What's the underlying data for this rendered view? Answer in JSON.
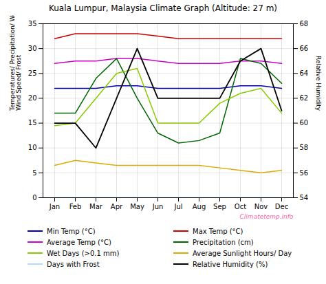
{
  "chart_data": {
    "type": "line",
    "title": "Kuala Lumpur, Malaysia Climate Graph (Altitude: 27 m)",
    "categories": [
      "Jan",
      "Feb",
      "Mar",
      "Apr",
      "May",
      "Jun",
      "Jul",
      "Aug",
      "Sep",
      "Oct",
      "Nov",
      "Dec"
    ],
    "series": [
      {
        "name": "Min Temp (°C)",
        "color": "#0000bb",
        "values": [
          22,
          22,
          22,
          22.5,
          22.5,
          22,
          22,
          22,
          22,
          22.5,
          22.5,
          22
        ]
      },
      {
        "name": "Max Temp (°C)",
        "color": "#cc0000",
        "values": [
          32,
          33,
          33,
          33,
          33,
          32.5,
          32,
          32,
          32,
          32,
          32,
          32
        ]
      },
      {
        "name": "Average Temp (°C)",
        "color": "#cc00cc",
        "values": [
          27,
          27.5,
          27.5,
          28,
          28,
          27.5,
          27,
          27,
          27,
          27.5,
          27.5,
          27
        ]
      },
      {
        "name": "Precipitation (cm)",
        "color": "#006600",
        "values": [
          17,
          17,
          24,
          28,
          20,
          13,
          11,
          11.5,
          13,
          28,
          27,
          23
        ]
      },
      {
        "name": "Wet Days (>0.1 mm)",
        "color": "#88cc00",
        "values": [
          14.5,
          15,
          20,
          25,
          26,
          15,
          15,
          15,
          19,
          21,
          22,
          17
        ]
      },
      {
        "name": "Average Sunlight Hours/ Day",
        "color": "#ddaa00",
        "values": [
          6.5,
          7.5,
          7,
          6.5,
          6.5,
          6.5,
          6.5,
          6.5,
          6,
          5.5,
          5,
          5.5
        ]
      },
      {
        "name": "Days with Frost",
        "color": "#aaddff",
        "values": [
          0,
          0,
          0,
          0,
          0,
          0,
          0,
          0,
          0,
          0,
          0,
          0
        ]
      },
      {
        "name": "Relative Humidity (%)",
        "color": "#000000",
        "values": [
          60,
          60,
          58,
          62,
          66,
          62,
          62,
          62,
          62,
          65,
          66,
          61
        ],
        "axis": "y2"
      }
    ],
    "ylim": [
      0,
      35
    ],
    "yticks": [
      0,
      5,
      10,
      15,
      20,
      25,
      30,
      35
    ],
    "y2lim": [
      54,
      68
    ],
    "y2ticks": [
      54,
      56,
      58,
      60,
      62,
      64,
      66,
      68
    ],
    "ylabel": "Temperatures/ Precipitation/ Wet Days/ Sunlight/\nWind Speed/ Frost",
    "y2label": "Relative Humidity",
    "grid": true,
    "legend": "bottom",
    "annotations": [
      {
        "text": "Climatetemp.info",
        "color": "#ff66aa"
      }
    ]
  }
}
